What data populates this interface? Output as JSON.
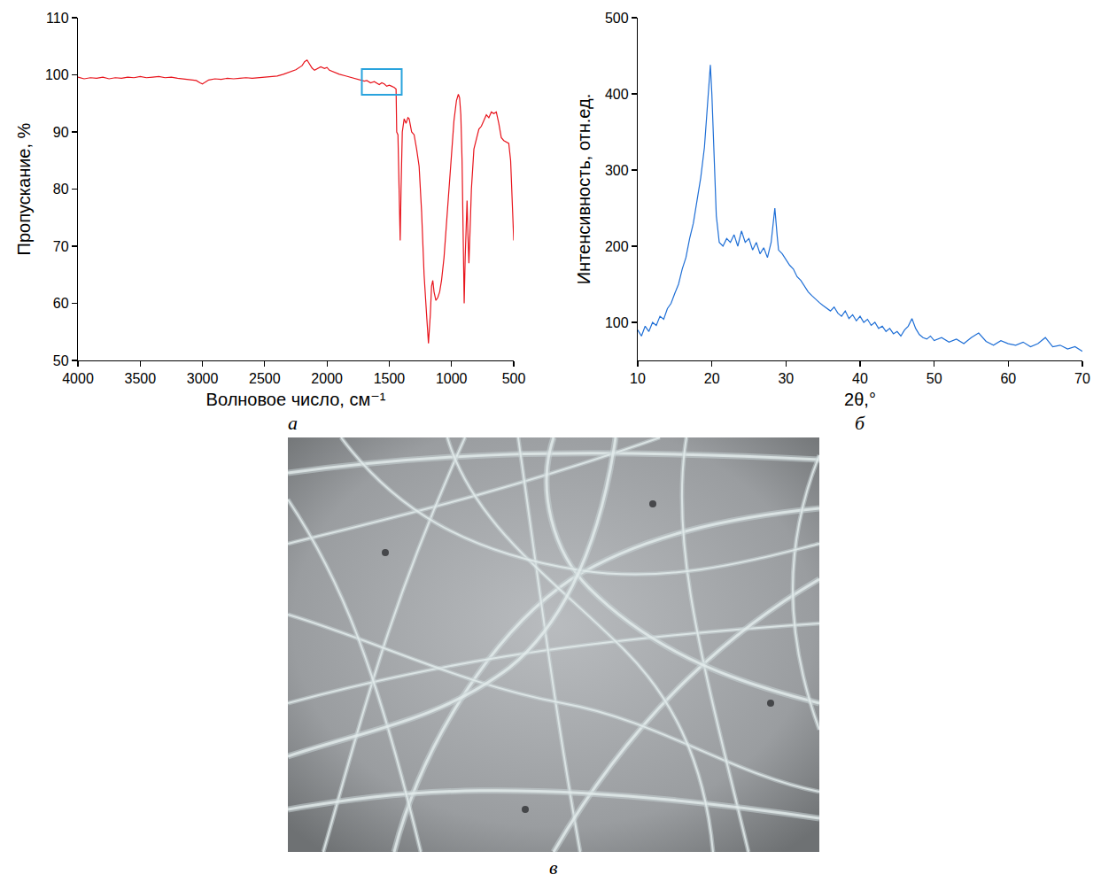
{
  "chart_data": [
    {
      "type": "line",
      "panel_label": "а",
      "x_label": "Волновое число, см⁻¹",
      "y_label": "Пропускание, %",
      "color": "#e8141c",
      "x": [
        4000,
        3950,
        3900,
        3850,
        3800,
        3750,
        3700,
        3650,
        3600,
        3550,
        3500,
        3450,
        3400,
        3350,
        3300,
        3250,
        3200,
        3150,
        3100,
        3050,
        3020,
        3000,
        2980,
        2950,
        2900,
        2850,
        2800,
        2750,
        2700,
        2650,
        2600,
        2550,
        2500,
        2450,
        2400,
        2350,
        2300,
        2250,
        2200,
        2180,
        2160,
        2140,
        2120,
        2100,
        2080,
        2050,
        2020,
        2000,
        1980,
        1950,
        1900,
        1850,
        1800,
        1750,
        1720,
        1700,
        1680,
        1650,
        1620,
        1600,
        1580,
        1560,
        1540,
        1520,
        1500,
        1480,
        1460,
        1445,
        1440,
        1430,
        1420,
        1412,
        1405,
        1395,
        1380,
        1365,
        1350,
        1340,
        1320,
        1300,
        1280,
        1260,
        1240,
        1220,
        1200,
        1185,
        1170,
        1160,
        1150,
        1140,
        1125,
        1110,
        1095,
        1080,
        1060,
        1040,
        1020,
        1000,
        980,
        960,
        945,
        935,
        925,
        915,
        905,
        898,
        890,
        880,
        875,
        868,
        860,
        852,
        840,
        820,
        800,
        780,
        760,
        740,
        720,
        700,
        680,
        660,
        640,
        620,
        600,
        580,
        560,
        540,
        525,
        515,
        505,
        500
      ],
      "values": [
        99.6,
        99.3,
        99.5,
        99.4,
        99.6,
        99.3,
        99.5,
        99.4,
        99.6,
        99.5,
        99.7,
        99.5,
        99.6,
        99.7,
        99.5,
        99.6,
        99.4,
        99.3,
        99.2,
        99.0,
        98.6,
        98.4,
        98.7,
        99.1,
        99.3,
        99.2,
        99.4,
        99.3,
        99.4,
        99.5,
        99.4,
        99.5,
        99.6,
        99.7,
        99.8,
        100.1,
        100.5,
        100.9,
        101.6,
        102.3,
        102.6,
        101.8,
        101.2,
        100.8,
        101.0,
        101.4,
        101.1,
        101.3,
        100.8,
        100.5,
        100.1,
        99.8,
        99.5,
        99.3,
        99.1,
        98.9,
        99.0,
        98.6,
        98.8,
        98.5,
        98.3,
        98.6,
        98.4,
        98.0,
        98.2,
        98.0,
        97.8,
        97.5,
        90,
        89.5,
        80,
        71,
        80,
        90,
        92.3,
        91.5,
        92.5,
        92.3,
        90,
        89.5,
        87,
        84,
        76,
        65,
        58,
        53,
        58,
        63,
        64,
        62,
        60.5,
        61,
        62,
        64,
        68,
        74,
        80,
        86,
        92,
        95.5,
        96.6,
        96,
        93,
        85,
        72,
        60,
        68,
        77,
        78,
        72,
        67,
        72,
        80,
        87,
        89,
        90.5,
        91,
        92,
        93,
        92.5,
        93.5,
        93.2,
        93.5,
        91.5,
        89,
        88.5,
        88.2,
        88,
        85,
        78,
        73,
        71
      ],
      "xlim": [
        4000,
        500
      ],
      "xticks": [
        4000,
        3500,
        3000,
        2500,
        2000,
        1500,
        1000,
        500
      ],
      "ylim": [
        50,
        110
      ],
      "yticks": [
        50,
        60,
        70,
        80,
        90,
        100,
        110
      ],
      "grid": false,
      "annotations": [
        {
          "type": "rect",
          "x": [
            1720,
            1400
          ],
          "y": [
            96.5,
            101
          ],
          "color": "#29a3dd"
        }
      ]
    },
    {
      "type": "line",
      "panel_label": "б",
      "x_label": "2θ,°",
      "y_label": "Интенсивность, отн.ед.",
      "color": "#1f6fd6",
      "x": [
        10,
        10.5,
        11,
        11.5,
        12,
        12.5,
        13,
        13.5,
        14,
        14.5,
        15,
        15.5,
        16,
        16.5,
        17,
        17.5,
        18,
        18.5,
        19,
        19.3,
        19.6,
        19.8,
        20,
        20.3,
        20.6,
        21,
        21.5,
        22,
        22.5,
        23,
        23.5,
        24,
        24.5,
        25,
        25.5,
        26,
        26.5,
        27,
        27.5,
        28,
        28.3,
        28.5,
        28.8,
        29,
        29.5,
        30,
        30.5,
        31,
        31.5,
        32,
        32.5,
        33,
        33.5,
        34,
        34.5,
        35,
        35.5,
        36,
        36.5,
        37,
        37.5,
        38,
        38.5,
        39,
        39.5,
        40,
        40.5,
        41,
        41.5,
        42,
        42.5,
        43,
        43.5,
        44,
        44.5,
        45,
        45.5,
        46,
        46.5,
        47,
        47.5,
        48,
        48.5,
        49,
        49.5,
        50,
        51,
        52,
        53,
        54,
        55,
        56,
        57,
        58,
        59,
        60,
        61,
        62,
        63,
        64,
        65,
        66,
        67,
        68,
        69,
        70
      ],
      "values": [
        90,
        82,
        95,
        88,
        100,
        96,
        108,
        104,
        118,
        125,
        138,
        150,
        170,
        185,
        210,
        230,
        260,
        290,
        330,
        370,
        415,
        438,
        400,
        320,
        240,
        205,
        200,
        210,
        205,
        215,
        200,
        220,
        205,
        210,
        195,
        205,
        190,
        198,
        185,
        205,
        235,
        250,
        215,
        195,
        190,
        182,
        175,
        170,
        160,
        155,
        148,
        140,
        135,
        130,
        126,
        122,
        118,
        115,
        120,
        112,
        108,
        115,
        105,
        110,
        102,
        108,
        100,
        104,
        96,
        100,
        92,
        95,
        88,
        92,
        85,
        88,
        82,
        90,
        95,
        105,
        92,
        84,
        80,
        78,
        82,
        76,
        80,
        74,
        78,
        72,
        80,
        86,
        75,
        70,
        76,
        72,
        70,
        74,
        68,
        72,
        80,
        68,
        70,
        65,
        68,
        62
      ],
      "xlim": [
        10,
        70
      ],
      "xticks": [
        10,
        20,
        30,
        40,
        50,
        60,
        70
      ],
      "ylim": [
        50,
        500
      ],
      "yticks": [
        100,
        200,
        300,
        400,
        500
      ],
      "grid": false
    }
  ],
  "image": {
    "panel_label": "в"
  }
}
